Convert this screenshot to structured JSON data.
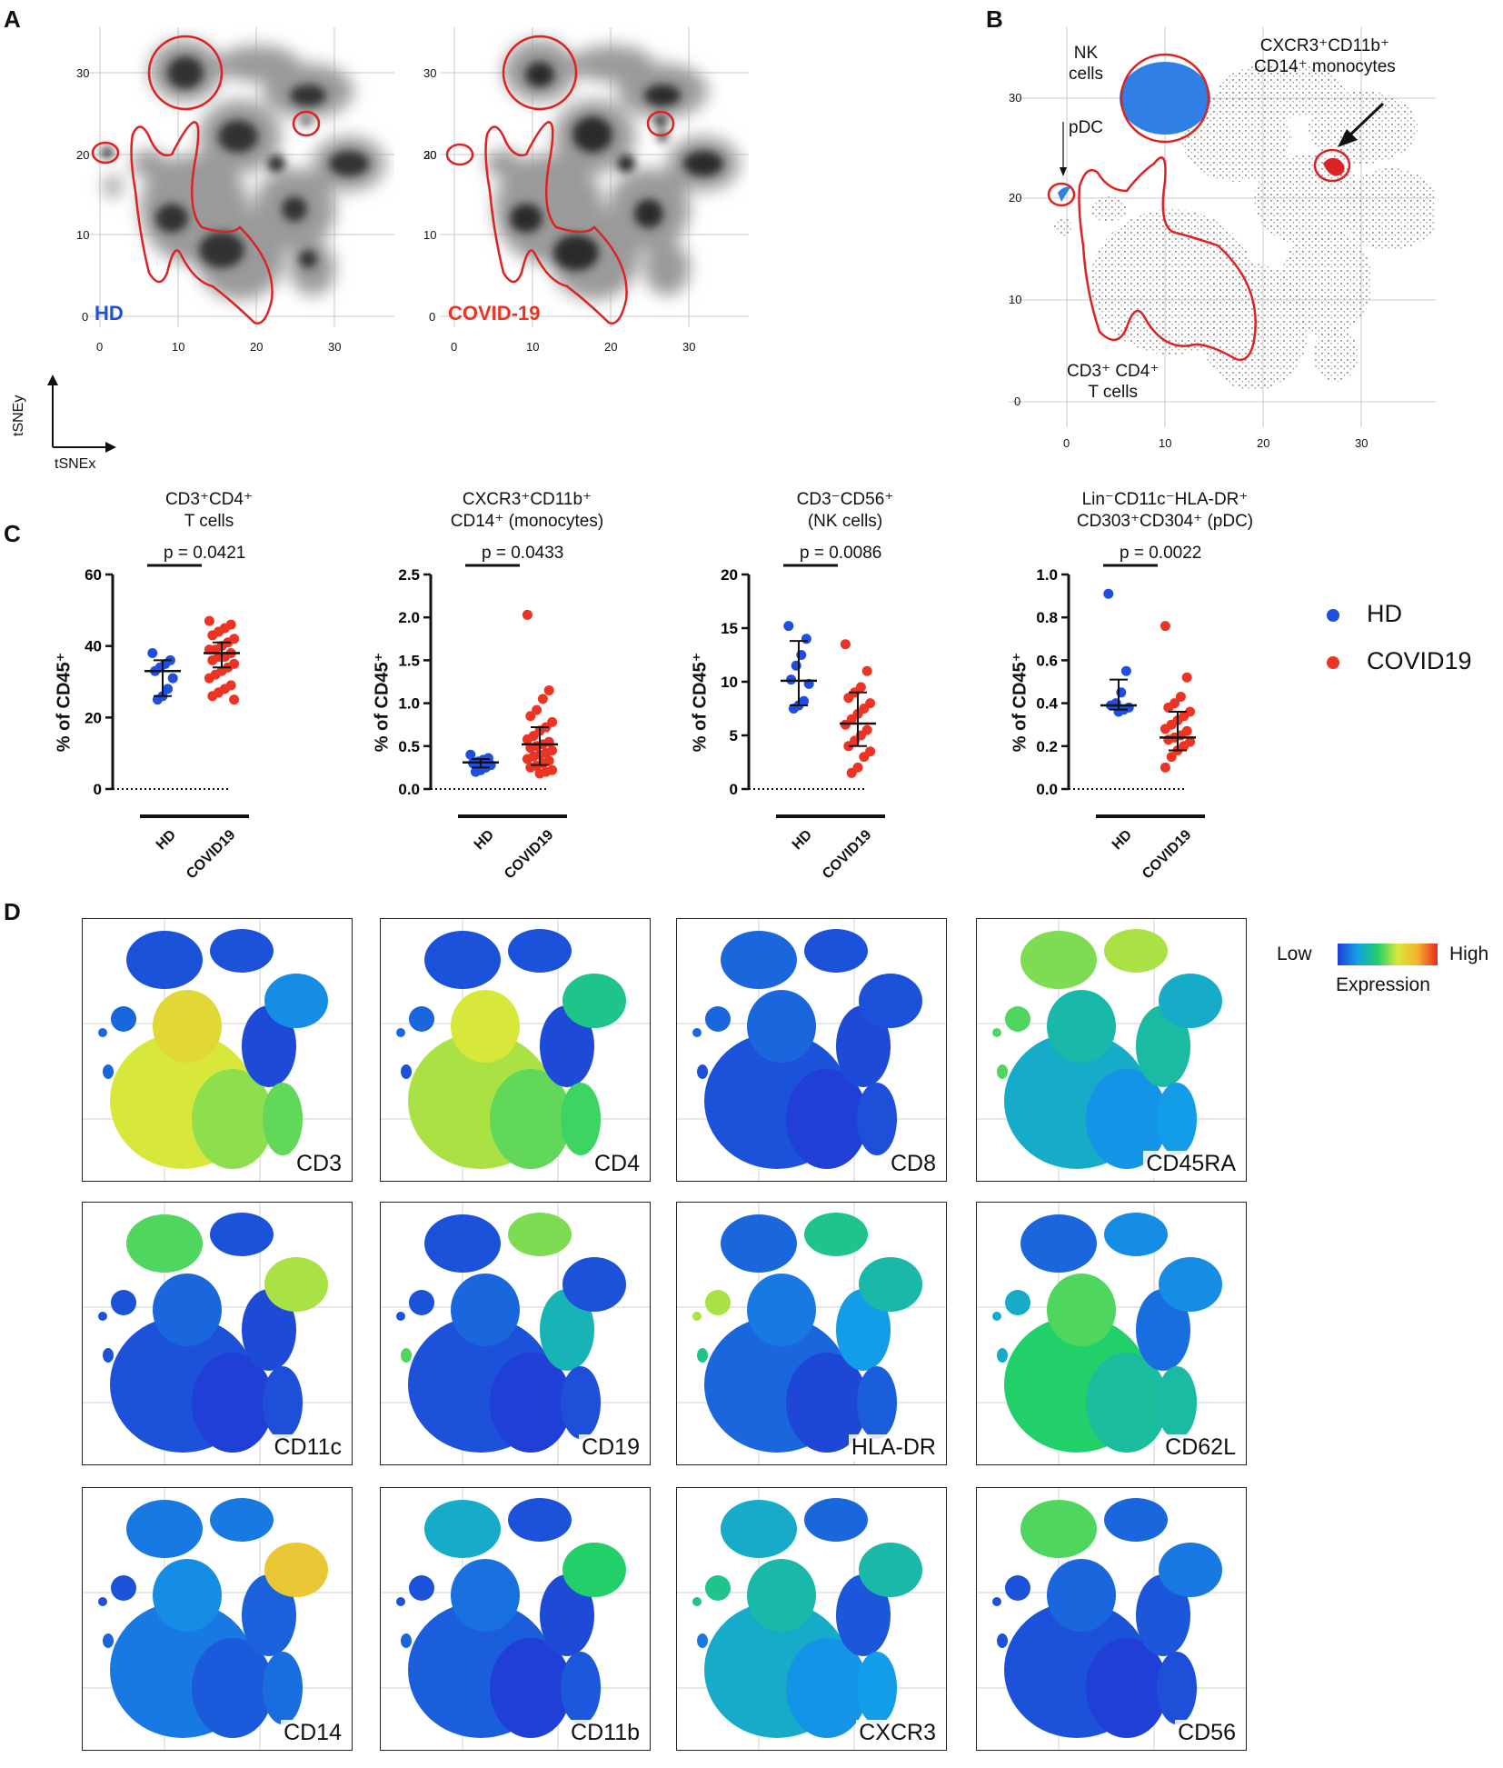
{
  "panels": {
    "a": "A",
    "b": "B",
    "c": "C",
    "d": "D"
  },
  "colors": {
    "hd": "#1f4fe0",
    "covid": "#ee3322",
    "gate": "#dd2222",
    "nk": "#2f7fe6",
    "mono": "#dd2222"
  },
  "tsne": {
    "xticks": [
      "0",
      "10",
      "20",
      "30"
    ],
    "yticks": [
      "30",
      "20",
      "10",
      "0"
    ],
    "hd_label": "HD",
    "covid_label": "COVID-19",
    "axis_y": "tSNEy",
    "axis_x": "tSNEx"
  },
  "panel_b": {
    "xticks": [
      "0",
      "10",
      "20",
      "30"
    ],
    "yticks": [
      "30",
      "20",
      "10",
      "0"
    ],
    "nk_line1": "NK",
    "nk_line2": "cells",
    "pdc": "pDC",
    "mono_line1": "CXCR3⁺CD11b⁺",
    "mono_line2": "CD14⁺ monocytes",
    "t_line1": "CD3⁺ CD4⁺",
    "t_line2": "T cells"
  },
  "chart_data": [
    {
      "type": "scatter",
      "title": "CD3⁺CD4⁺\nT cells",
      "title_line1": "CD3⁺CD4⁺",
      "title_line2": "T cells",
      "ylabel": "% of CD45⁺",
      "ylim": [
        0,
        60
      ],
      "yticks": [
        "0",
        "20",
        "40",
        "60"
      ],
      "categories": [
        "HD",
        "COVID19"
      ],
      "pvalue": "p = 0.0421",
      "series": [
        {
          "name": "HD",
          "values": [
            38,
            36,
            35,
            34,
            33,
            31,
            28,
            26,
            25
          ],
          "median": 33,
          "q1": 26,
          "q3": 36
        },
        {
          "name": "COVID19",
          "values": [
            47,
            46,
            45,
            44,
            43,
            42,
            41,
            40,
            39,
            39,
            38,
            37,
            37,
            36,
            35,
            34,
            33,
            32,
            31,
            29,
            28,
            27,
            26,
            25
          ],
          "median": 38,
          "q1": 34,
          "q3": 41
        }
      ]
    },
    {
      "type": "scatter",
      "title_line1": "CXCR3⁺CD11b⁺",
      "title_line2": "CD14⁺ (monocytes)",
      "ylabel": "% of CD45⁺",
      "ylim": [
        0,
        2.5
      ],
      "yticks": [
        "0.0",
        "0.5",
        "1.0",
        "1.5",
        "2.0",
        "2.5"
      ],
      "categories": [
        "HD",
        "COVID19"
      ],
      "pvalue": "p = 0.0433",
      "series": [
        {
          "name": "HD",
          "values": [
            0.4,
            0.36,
            0.34,
            0.32,
            0.3,
            0.28,
            0.25,
            0.22,
            0.2
          ],
          "median": 0.31,
          "q1": 0.25,
          "q3": 0.35
        },
        {
          "name": "COVID19",
          "values": [
            2.03,
            1.15,
            1.05,
            0.92,
            0.85,
            0.78,
            0.72,
            0.68,
            0.62,
            0.58,
            0.55,
            0.52,
            0.5,
            0.48,
            0.45,
            0.42,
            0.4,
            0.38,
            0.35,
            0.33,
            0.3,
            0.27,
            0.25,
            0.22,
            0.2,
            0.18
          ],
          "median": 0.52,
          "q1": 0.28,
          "q3": 0.72
        }
      ]
    },
    {
      "type": "scatter",
      "title_line1": "CD3⁻CD56⁺",
      "title_line2": "(NK cells)",
      "ylabel": "% of CD45⁺",
      "ylim": [
        0,
        20
      ],
      "yticks": [
        "0",
        "5",
        "10",
        "15",
        "20"
      ],
      "categories": [
        "HD",
        "COVID19"
      ],
      "pvalue": "p = 0.0086",
      "series": [
        {
          "name": "HD",
          "values": [
            15.2,
            14.0,
            12.5,
            11.5,
            10.2,
            9.8,
            8.2,
            7.8,
            7.5
          ],
          "median": 10.1,
          "q1": 7.8,
          "q3": 13.8
        },
        {
          "name": "COVID19",
          "values": [
            13.5,
            11.0,
            9.5,
            9.0,
            8.5,
            8.0,
            7.5,
            7.0,
            6.5,
            6.0,
            5.5,
            5.0,
            4.5,
            4.0,
            3.5,
            3.0,
            2.0,
            1.5
          ],
          "median": 6.1,
          "q1": 4.0,
          "q3": 9.0
        }
      ]
    },
    {
      "type": "scatter",
      "title_line1": "Lin⁻CD11c⁻HLA-DR⁺",
      "title_line2": "CD303⁺CD304⁺ (pDC)",
      "ylabel": "% of CD45⁺",
      "ylim": [
        0,
        1.0
      ],
      "yticks": [
        "0.0",
        "0.2",
        "0.4",
        "0.6",
        "0.8",
        "1.0"
      ],
      "categories": [
        "HD",
        "COVID19"
      ],
      "pvalue": "p = 0.0022",
      "series": [
        {
          "name": "HD",
          "values": [
            0.91,
            0.55,
            0.45,
            0.4,
            0.39,
            0.38,
            0.37,
            0.36
          ],
          "median": 0.39,
          "q1": 0.37,
          "q3": 0.51
        },
        {
          "name": "COVID19",
          "values": [
            0.76,
            0.52,
            0.43,
            0.4,
            0.38,
            0.36,
            0.34,
            0.32,
            0.3,
            0.28,
            0.27,
            0.25,
            0.24,
            0.23,
            0.22,
            0.2,
            0.18,
            0.15,
            0.1
          ],
          "median": 0.24,
          "q1": 0.18,
          "q3": 0.36
        }
      ]
    }
  ],
  "legend": {
    "hd": "HD",
    "covid": "COVID19"
  },
  "markers": [
    "CD3",
    "CD4",
    "CD8",
    "CD45RA",
    "CD11c",
    "CD19",
    "HLA-DR",
    "CD62L",
    "CD14",
    "CD11b",
    "CXCR3",
    "CD56"
  ],
  "expression": {
    "low": "Low",
    "high": "High",
    "caption": "Expression"
  }
}
